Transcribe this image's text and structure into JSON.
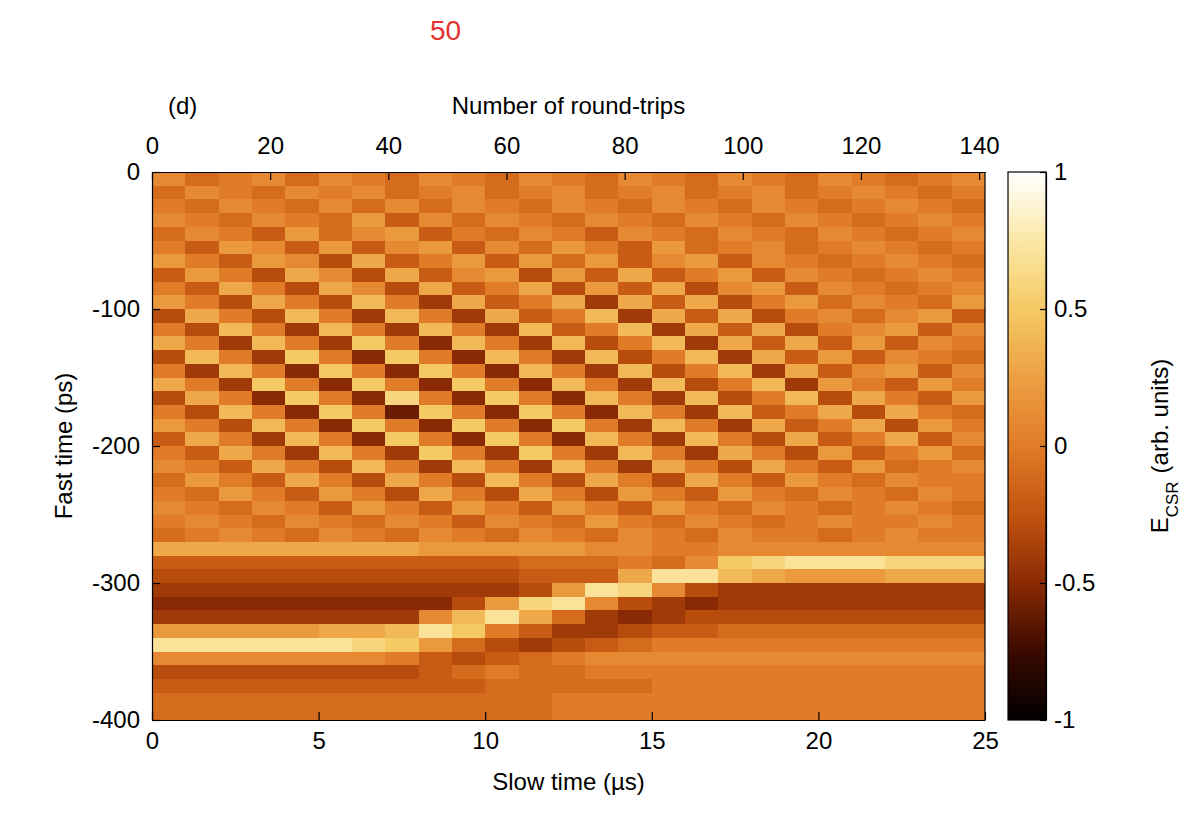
{
  "chart_data": {
    "type": "heatmap",
    "panel_label": "(d)",
    "annotations": [
      "50"
    ],
    "xlabel": "Slow time (µs)",
    "ylabel": "Fast time (ps)",
    "x2label": "Number of round-trips",
    "xlim": [
      0,
      25
    ],
    "xticks": [
      0,
      5,
      10,
      15,
      20,
      25
    ],
    "ylim": [
      -400,
      0
    ],
    "yticks": [
      -400,
      -300,
      -200,
      -100,
      0
    ],
    "x2lim": [
      0,
      141
    ],
    "x2ticks": [
      0,
      20,
      40,
      60,
      80,
      100,
      120,
      140
    ],
    "xbins": [
      0,
      1,
      2,
      3,
      4,
      5,
      6,
      7,
      8,
      9,
      10,
      11,
      12,
      13,
      14,
      15,
      16,
      17,
      18,
      19,
      20,
      21,
      22,
      23,
      24,
      25
    ],
    "ybins": [
      0,
      -10,
      -20,
      -30,
      -40,
      -50,
      -60,
      -70,
      -80,
      -90,
      -100,
      -110,
      -120,
      -130,
      -140,
      -150,
      -160,
      -170,
      -180,
      -190,
      -200,
      -210,
      -220,
      -230,
      -240,
      -250,
      -260,
      -270,
      -280,
      -290,
      -300,
      -310,
      -320,
      -330,
      -340,
      -350,
      -360,
      -370,
      -380,
      -390,
      -400
    ],
    "z": [
      [
        0.1,
        -0.1,
        0,
        0.1,
        -0.1,
        0.1,
        0,
        -0.1,
        0.1,
        0,
        -0.1,
        0.1,
        0,
        -0.1,
        0.1,
        0,
        -0.1,
        0.1,
        0,
        -0.1,
        0.1,
        0,
        -0.1,
        0,
        0.1
      ],
      [
        -0.1,
        0.1,
        0,
        -0.1,
        0.1,
        0,
        0.1,
        -0.1,
        0,
        0.1,
        -0.1,
        0,
        0.1,
        -0.1,
        0,
        0.1,
        -0.1,
        0,
        0.1,
        -0.1,
        0,
        0.1,
        0,
        -0.1,
        0
      ],
      [
        0,
        -0.1,
        0.1,
        0,
        -0.1,
        0.1,
        -0.1,
        0.1,
        -0.1,
        0.1,
        0,
        -0.1,
        0.1,
        0,
        -0.1,
        0.1,
        0,
        -0.1,
        0.1,
        0,
        -0.1,
        0,
        0.1,
        0,
        -0.1
      ],
      [
        0.1,
        0,
        -0.1,
        0.1,
        0,
        -0.1,
        0.2,
        -0.2,
        0.1,
        -0.1,
        0.1,
        0,
        -0.1,
        0.1,
        0,
        -0.1,
        0.1,
        0,
        -0.1,
        0.1,
        0,
        -0.1,
        0,
        0.1,
        0
      ],
      [
        -0.1,
        0.1,
        0,
        -0.2,
        0.2,
        -0.1,
        0.1,
        0.2,
        -0.2,
        0,
        -0.1,
        0.1,
        0,
        -0.2,
        0.1,
        0,
        -0.1,
        0.1,
        0,
        -0.1,
        0.1,
        0,
        -0.1,
        0,
        0.1
      ],
      [
        0,
        -0.2,
        0.2,
        0.1,
        -0.2,
        0.2,
        -0.2,
        0.1,
        0.2,
        -0.2,
        0.1,
        -0.1,
        0.2,
        0,
        -0.2,
        0.2,
        -0.1,
        0,
        0.1,
        -0.1,
        0,
        0.1,
        0,
        -0.1,
        0
      ],
      [
        0.2,
        0,
        -0.2,
        0.2,
        0.1,
        -0.3,
        0.3,
        -0.2,
        0,
        0.2,
        -0.2,
        0.2,
        -0.1,
        0.2,
        -0.2,
        0.1,
        0.2,
        -0.2,
        0.1,
        0,
        -0.1,
        0,
        0.1,
        0,
        -0.1
      ],
      [
        -0.2,
        0.2,
        0,
        -0.3,
        0.3,
        0.1,
        -0.3,
        0.3,
        -0.2,
        0.1,
        0.2,
        -0.3,
        0.2,
        -0.2,
        0.3,
        -0.2,
        0,
        0.2,
        -0.2,
        0.1,
        0,
        -0.1,
        0,
        0.1,
        0
      ],
      [
        0,
        -0.2,
        0.3,
        0,
        -0.3,
        0.3,
        0.1,
        -0.3,
        0.3,
        -0.2,
        0,
        0.3,
        -0.3,
        0.2,
        -0.2,
        0.3,
        -0.3,
        0.1,
        0.2,
        -0.2,
        0.1,
        0,
        -0.1,
        0,
        0.1
      ],
      [
        0.2,
        0,
        -0.3,
        0.3,
        0,
        -0.3,
        0.4,
        0,
        -0.4,
        0.3,
        -0.2,
        0,
        0.3,
        -0.4,
        0.3,
        -0.2,
        0.3,
        -0.3,
        0,
        0.2,
        -0.1,
        0.1,
        0,
        -0.1,
        0.2
      ],
      [
        -0.3,
        0.3,
        0,
        -0.3,
        0.4,
        0,
        -0.4,
        0.4,
        0,
        -0.4,
        0.3,
        -0.2,
        0,
        0.4,
        -0.4,
        0.3,
        -0.2,
        0.3,
        -0.3,
        0,
        0.1,
        -0.1,
        0.1,
        0.2,
        -0.2
      ],
      [
        0,
        -0.3,
        0.4,
        0,
        -0.4,
        0.4,
        0,
        -0.4,
        0.4,
        0,
        -0.4,
        0.4,
        -0.2,
        0,
        0.4,
        -0.4,
        0.3,
        -0.2,
        0.3,
        -0.3,
        0,
        0.1,
        0.2,
        -0.2,
        0.1
      ],
      [
        0.3,
        0,
        -0.4,
        0.4,
        0,
        -0.4,
        0.5,
        0,
        -0.5,
        0.4,
        0,
        -0.4,
        0.4,
        -0.3,
        0,
        0.4,
        -0.4,
        0.3,
        -0.2,
        0.3,
        -0.2,
        0.2,
        -0.2,
        0.1,
        0
      ],
      [
        -0.3,
        0.4,
        0,
        -0.4,
        0.5,
        0,
        -0.5,
        0.5,
        0,
        -0.5,
        0.4,
        0,
        -0.4,
        0.4,
        -0.3,
        0,
        0.4,
        -0.4,
        0.3,
        -0.2,
        0.2,
        -0.2,
        0.1,
        0,
        -0.1
      ],
      [
        0,
        -0.4,
        0.4,
        0,
        -0.5,
        0.5,
        0,
        -0.5,
        0.5,
        0,
        -0.5,
        0.4,
        0,
        -0.4,
        0.4,
        -0.3,
        0,
        0.4,
        -0.4,
        0.3,
        -0.2,
        0.1,
        0.2,
        -0.2,
        0.1
      ],
      [
        0.3,
        0,
        -0.4,
        0.5,
        0,
        -0.5,
        0.5,
        0,
        -0.5,
        0.5,
        0,
        -0.5,
        0.4,
        0,
        -0.4,
        0.4,
        -0.3,
        0,
        0.4,
        -0.4,
        0.2,
        0,
        -0.2,
        0.2,
        0
      ],
      [
        -0.3,
        0.3,
        0,
        -0.5,
        0.5,
        0,
        -0.5,
        0.6,
        0,
        -0.5,
        0.5,
        0,
        -0.5,
        0.4,
        0,
        -0.4,
        0.4,
        -0.3,
        0,
        0.4,
        -0.3,
        0.3,
        0,
        -0.2,
        0.2
      ],
      [
        0,
        -0.3,
        0.4,
        0,
        -0.5,
        0.5,
        0,
        -0.6,
        0.5,
        0,
        -0.5,
        0.5,
        0,
        -0.5,
        0.4,
        0,
        -0.4,
        0.4,
        -0.2,
        0,
        0.3,
        -0.3,
        0.3,
        0,
        -0.1
      ],
      [
        0.2,
        0,
        -0.3,
        0.4,
        0,
        -0.5,
        0.5,
        0,
        -0.5,
        0.5,
        0,
        -0.5,
        0.5,
        0,
        -0.4,
        0.4,
        0,
        -0.4,
        0.3,
        -0.2,
        0,
        0.3,
        -0.3,
        0.2,
        0
      ],
      [
        -0.2,
        0.3,
        0,
        -0.4,
        0.4,
        0,
        -0.5,
        0.5,
        0,
        -0.5,
        0.5,
        0,
        -0.5,
        0.4,
        0,
        -0.4,
        0.4,
        0,
        -0.3,
        0.3,
        -0.2,
        0,
        0.3,
        -0.2,
        0.1
      ],
      [
        0,
        -0.2,
        0.3,
        0,
        -0.4,
        0.4,
        0,
        -0.4,
        0.5,
        0,
        -0.4,
        0.5,
        0,
        -0.4,
        0.4,
        0,
        -0.4,
        0.3,
        0,
        -0.3,
        0.2,
        -0.2,
        0,
        0.2,
        -0.1
      ],
      [
        0.1,
        0,
        -0.2,
        0.3,
        0,
        -0.3,
        0.4,
        0,
        -0.4,
        0.4,
        0,
        -0.4,
        0.4,
        0,
        -0.4,
        0.3,
        0,
        -0.3,
        0.3,
        0,
        -0.2,
        0.2,
        -0.1,
        0,
        0.1
      ],
      [
        -0.1,
        0.2,
        0,
        -0.2,
        0.3,
        0,
        -0.3,
        0.3,
        0,
        -0.3,
        0.4,
        0,
        -0.3,
        0.3,
        0,
        -0.3,
        0.3,
        0,
        -0.2,
        0.2,
        0,
        -0.1,
        0.1,
        0,
        0
      ],
      [
        0,
        -0.1,
        0.2,
        0,
        -0.2,
        0.2,
        0,
        -0.3,
        0.3,
        0,
        -0.3,
        0.3,
        0,
        -0.3,
        0.2,
        0,
        -0.2,
        0.2,
        0,
        -0.1,
        0.1,
        0,
        -0.1,
        0.1,
        0
      ],
      [
        0.1,
        0,
        -0.1,
        0.1,
        0,
        -0.2,
        0.2,
        0,
        -0.2,
        0.2,
        0,
        -0.2,
        0.2,
        0,
        -0.2,
        0.2,
        0,
        -0.1,
        0.1,
        0,
        -0.1,
        0,
        0.1,
        0,
        -0.1
      ],
      [
        0,
        0.1,
        0,
        -0.1,
        0.1,
        0,
        -0.1,
        0.1,
        0,
        -0.2,
        0.1,
        0,
        -0.1,
        0.2,
        0,
        -0.1,
        0.1,
        0,
        -0.1,
        0,
        0.1,
        0,
        0,
        0.1,
        0
      ],
      [
        -0.1,
        0,
        0.1,
        0,
        -0.1,
        0.1,
        0,
        -0.1,
        0.1,
        0,
        -0.1,
        0.1,
        0,
        -0.1,
        0.1,
        0,
        -0.1,
        0.1,
        0,
        0,
        -0.1,
        0,
        0.1,
        0,
        0
      ],
      [
        0.3,
        0.3,
        0.3,
        0.3,
        0.3,
        0.3,
        0.3,
        0.3,
        0.2,
        0.2,
        0.2,
        0.2,
        0.2,
        0.1,
        0.1,
        0,
        0,
        0.1,
        0.1,
        0.1,
        0.1,
        0.1,
        0.1,
        0.1,
        0.1
      ],
      [
        -0.2,
        -0.2,
        -0.2,
        -0.2,
        -0.2,
        -0.2,
        -0.2,
        -0.2,
        -0.2,
        -0.2,
        -0.2,
        -0.1,
        -0.1,
        -0.1,
        0,
        -0.1,
        0.1,
        0.5,
        0.6,
        0.7,
        0.7,
        0.7,
        0.6,
        0.6,
        0.6
      ],
      [
        -0.3,
        -0.3,
        -0.3,
        -0.3,
        -0.3,
        -0.3,
        -0.3,
        -0.3,
        -0.3,
        -0.3,
        -0.3,
        -0.2,
        -0.2,
        -0.2,
        0.3,
        0.7,
        0.7,
        0.4,
        0.3,
        0.2,
        0.2,
        0.2,
        0.3,
        0.3,
        0.3
      ],
      [
        -0.4,
        -0.4,
        -0.4,
        -0.4,
        -0.4,
        -0.4,
        -0.4,
        -0.4,
        -0.4,
        -0.4,
        -0.4,
        -0.3,
        0.2,
        0.7,
        0.6,
        0.1,
        -0.3,
        -0.4,
        -0.4,
        -0.4,
        -0.4,
        -0.4,
        -0.4,
        -0.4,
        -0.4
      ],
      [
        -0.5,
        -0.5,
        -0.5,
        -0.5,
        -0.5,
        -0.5,
        -0.5,
        -0.5,
        -0.5,
        -0.3,
        0.2,
        0.6,
        0.7,
        0.1,
        -0.3,
        -0.4,
        -0.5,
        -0.4,
        -0.4,
        -0.4,
        -0.4,
        -0.4,
        -0.4,
        -0.4,
        -0.4
      ],
      [
        -0.4,
        -0.4,
        -0.4,
        -0.4,
        -0.4,
        -0.4,
        -0.4,
        -0.4,
        0.1,
        0.4,
        0.7,
        0.3,
        -0.1,
        -0.4,
        -0.5,
        -0.4,
        -0.3,
        -0.3,
        -0.3,
        -0.3,
        -0.3,
        -0.3,
        -0.3,
        -0.3,
        -0.3
      ],
      [
        0.2,
        0.2,
        0.2,
        0.2,
        0.2,
        0.3,
        0.3,
        0.4,
        0.7,
        0.5,
        0,
        -0.2,
        -0.4,
        -0.4,
        -0.3,
        -0.2,
        -0.2,
        -0.1,
        -0.1,
        -0.1,
        -0.1,
        -0.1,
        -0.1,
        -0.1,
        -0.1
      ],
      [
        0.7,
        0.7,
        0.7,
        0.7,
        0.7,
        0.7,
        0.6,
        0.5,
        0.2,
        -0.1,
        -0.3,
        -0.4,
        -0.3,
        -0.2,
        -0.1,
        0,
        0,
        0,
        0,
        0,
        0,
        0,
        0,
        0,
        0
      ],
      [
        0.1,
        0.1,
        0.1,
        0.1,
        0.1,
        0.1,
        0.1,
        0,
        -0.2,
        -0.3,
        -0.2,
        -0.1,
        0,
        0.1,
        0.1,
        0.1,
        0.1,
        0.1,
        0.1,
        0.1,
        0.1,
        0.1,
        0.1,
        0.1,
        0.1
      ],
      [
        -0.3,
        -0.3,
        -0.3,
        -0.3,
        -0.3,
        -0.3,
        -0.3,
        -0.3,
        -0.2,
        -0.1,
        0,
        -0.1,
        -0.1,
        0,
        0,
        0,
        0,
        0,
        0,
        0,
        0,
        0,
        0,
        0,
        0
      ],
      [
        -0.2,
        -0.2,
        -0.2,
        -0.2,
        -0.2,
        -0.2,
        -0.2,
        -0.2,
        -0.2,
        -0.2,
        -0.1,
        -0.1,
        -0.1,
        -0.1,
        -0.1,
        0,
        0,
        0,
        0,
        0,
        0,
        0,
        0,
        0,
        0
      ],
      [
        -0.1,
        -0.1,
        -0.1,
        -0.1,
        -0.1,
        -0.1,
        -0.1,
        -0.1,
        -0.1,
        -0.1,
        -0.1,
        -0.1,
        0,
        0,
        0,
        0,
        0,
        0,
        0,
        0,
        0,
        0,
        0,
        0,
        0
      ],
      [
        -0.1,
        -0.1,
        -0.1,
        -0.1,
        -0.1,
        -0.1,
        -0.1,
        -0.1,
        -0.1,
        -0.1,
        -0.1,
        -0.1,
        0,
        0,
        0,
        0,
        0,
        0,
        0,
        0,
        0,
        0,
        0,
        0,
        0
      ]
    ],
    "colorbar": {
      "range": [
        -1,
        1
      ],
      "ticks": [
        -1,
        -0.5,
        0,
        0.5,
        1
      ],
      "label": "E",
      "label_subscript": "CSR",
      "label_suffix": "(arb. units)"
    }
  }
}
